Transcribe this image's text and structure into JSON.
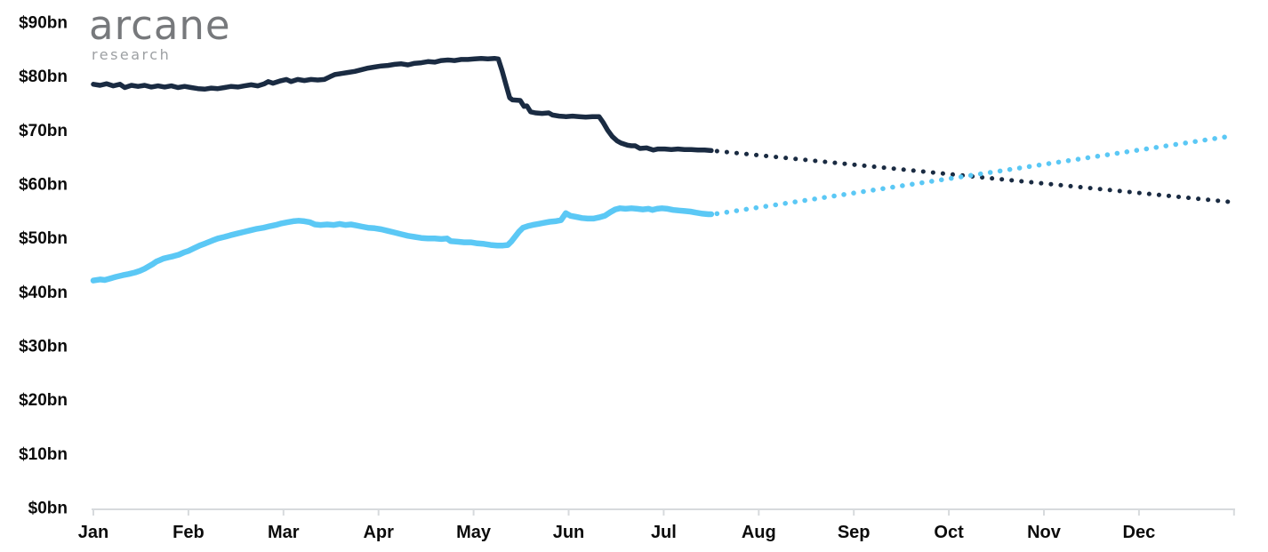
{
  "brand": {
    "wordmark": "arcane",
    "subtext": "research",
    "wordmark_color": "#77797c",
    "subtext_color": "#9da0a3"
  },
  "chart_data": {
    "type": "line",
    "title": "",
    "x_unit": "month",
    "y_unit": "$bn",
    "grid": false,
    "legend": "none",
    "axis_color": "#d7dadd",
    "xlim_months": [
      0,
      12
    ],
    "ylim": [
      0,
      90
    ],
    "x_tick_labels": [
      "Jan",
      "Feb",
      "Mar",
      "Apr",
      "May",
      "Jun",
      "Jul",
      "Aug",
      "Sep",
      "Oct",
      "Nov",
      "Dec"
    ],
    "y_ticks": [
      {
        "label": "$90bn",
        "value": 90
      },
      {
        "label": "$80bn",
        "value": 80
      },
      {
        "label": "$70bn",
        "value": 70
      },
      {
        "label": "$60bn",
        "value": 60
      },
      {
        "label": "$50bn",
        "value": 50
      },
      {
        "label": "$40bn",
        "value": 40
      },
      {
        "label": "$30bn",
        "value": 30
      },
      {
        "label": "$20bn",
        "value": 20
      },
      {
        "label": "$10bn",
        "value": 10
      },
      {
        "label": "$0bn",
        "value": 0
      }
    ],
    "series": [
      {
        "name": "dark-navy-actual",
        "style": "solid",
        "color": "#1a2b42",
        "points": [
          [
            0.0,
            78.5
          ],
          [
            0.07,
            78.3
          ],
          [
            0.14,
            78.6
          ],
          [
            0.21,
            78.2
          ],
          [
            0.28,
            78.5
          ],
          [
            0.33,
            77.9
          ],
          [
            0.4,
            78.3
          ],
          [
            0.47,
            78.1
          ],
          [
            0.54,
            78.3
          ],
          [
            0.61,
            78.0
          ],
          [
            0.68,
            78.2
          ],
          [
            0.75,
            78.0
          ],
          [
            0.82,
            78.2
          ],
          [
            0.89,
            77.9
          ],
          [
            0.96,
            78.1
          ],
          [
            1.03,
            77.9
          ],
          [
            1.1,
            77.7
          ],
          [
            1.17,
            77.6
          ],
          [
            1.24,
            77.8
          ],
          [
            1.31,
            77.7
          ],
          [
            1.38,
            77.9
          ],
          [
            1.45,
            78.1
          ],
          [
            1.52,
            78.0
          ],
          [
            1.59,
            78.2
          ],
          [
            1.66,
            78.4
          ],
          [
            1.73,
            78.2
          ],
          [
            1.8,
            78.6
          ],
          [
            1.84,
            79.0
          ],
          [
            1.89,
            78.7
          ],
          [
            1.96,
            79.1
          ],
          [
            2.03,
            79.4
          ],
          [
            2.08,
            79.0
          ],
          [
            2.15,
            79.4
          ],
          [
            2.22,
            79.2
          ],
          [
            2.29,
            79.4
          ],
          [
            2.36,
            79.3
          ],
          [
            2.43,
            79.4
          ],
          [
            2.49,
            79.9
          ],
          [
            2.54,
            80.3
          ],
          [
            2.61,
            80.5
          ],
          [
            2.68,
            80.7
          ],
          [
            2.75,
            80.9
          ],
          [
            2.82,
            81.2
          ],
          [
            2.89,
            81.5
          ],
          [
            2.96,
            81.7
          ],
          [
            3.03,
            81.9
          ],
          [
            3.1,
            82.0
          ],
          [
            3.17,
            82.2
          ],
          [
            3.24,
            82.3
          ],
          [
            3.31,
            82.1
          ],
          [
            3.38,
            82.4
          ],
          [
            3.45,
            82.5
          ],
          [
            3.52,
            82.7
          ],
          [
            3.59,
            82.6
          ],
          [
            3.66,
            82.9
          ],
          [
            3.73,
            83.0
          ],
          [
            3.8,
            82.9
          ],
          [
            3.87,
            83.1
          ],
          [
            3.94,
            83.1
          ],
          [
            4.01,
            83.2
          ],
          [
            4.08,
            83.3
          ],
          [
            4.15,
            83.2
          ],
          [
            4.22,
            83.3
          ],
          [
            4.26,
            83.2
          ],
          [
            4.3,
            81.0
          ],
          [
            4.34,
            78.5
          ],
          [
            4.38,
            76.0
          ],
          [
            4.41,
            75.6
          ],
          [
            4.49,
            75.5
          ],
          [
            4.53,
            74.4
          ],
          [
            4.56,
            74.5
          ],
          [
            4.6,
            73.4
          ],
          [
            4.65,
            73.2
          ],
          [
            4.72,
            73.1
          ],
          [
            4.79,
            73.2
          ],
          [
            4.83,
            72.8
          ],
          [
            4.9,
            72.6
          ],
          [
            4.97,
            72.5
          ],
          [
            5.04,
            72.6
          ],
          [
            5.11,
            72.5
          ],
          [
            5.18,
            72.4
          ],
          [
            5.25,
            72.5
          ],
          [
            5.32,
            72.5
          ],
          [
            5.36,
            71.5
          ],
          [
            5.41,
            70.0
          ],
          [
            5.46,
            68.8
          ],
          [
            5.51,
            68.0
          ],
          [
            5.55,
            67.6
          ],
          [
            5.62,
            67.2
          ],
          [
            5.66,
            67.1
          ],
          [
            5.7,
            67.1
          ],
          [
            5.75,
            66.6
          ],
          [
            5.82,
            66.7
          ],
          [
            5.89,
            66.3
          ],
          [
            5.94,
            66.5
          ],
          [
            6.01,
            66.5
          ],
          [
            6.08,
            66.4
          ],
          [
            6.15,
            66.5
          ],
          [
            6.22,
            66.4
          ],
          [
            6.29,
            66.4
          ],
          [
            6.36,
            66.3
          ],
          [
            6.43,
            66.3
          ],
          [
            6.5,
            66.2
          ]
        ]
      },
      {
        "name": "dark-navy-projected",
        "style": "dotted",
        "color": "#1a2b42",
        "points": [
          [
            6.56,
            66.1
          ],
          [
            11.95,
            56.7
          ]
        ]
      },
      {
        "name": "light-blue-actual",
        "style": "solid",
        "color": "#5bc8f5",
        "points": [
          [
            0.0,
            42.1
          ],
          [
            0.07,
            42.3
          ],
          [
            0.12,
            42.2
          ],
          [
            0.18,
            42.5
          ],
          [
            0.24,
            42.8
          ],
          [
            0.31,
            43.1
          ],
          [
            0.37,
            43.3
          ],
          [
            0.44,
            43.6
          ],
          [
            0.49,
            43.9
          ],
          [
            0.54,
            44.3
          ],
          [
            0.58,
            44.7
          ],
          [
            0.62,
            45.1
          ],
          [
            0.66,
            45.6
          ],
          [
            0.7,
            45.9
          ],
          [
            0.74,
            46.2
          ],
          [
            0.79,
            46.4
          ],
          [
            0.84,
            46.6
          ],
          [
            0.9,
            46.9
          ],
          [
            0.95,
            47.3
          ],
          [
            1.0,
            47.6
          ],
          [
            1.06,
            48.1
          ],
          [
            1.12,
            48.6
          ],
          [
            1.18,
            49.0
          ],
          [
            1.25,
            49.5
          ],
          [
            1.31,
            49.9
          ],
          [
            1.38,
            50.2
          ],
          [
            1.44,
            50.5
          ],
          [
            1.51,
            50.8
          ],
          [
            1.58,
            51.1
          ],
          [
            1.65,
            51.4
          ],
          [
            1.72,
            51.7
          ],
          [
            1.79,
            51.9
          ],
          [
            1.86,
            52.2
          ],
          [
            1.92,
            52.4
          ],
          [
            1.98,
            52.7
          ],
          [
            2.04,
            52.9
          ],
          [
            2.1,
            53.1
          ],
          [
            2.16,
            53.2
          ],
          [
            2.22,
            53.1
          ],
          [
            2.28,
            52.9
          ],
          [
            2.33,
            52.5
          ],
          [
            2.39,
            52.4
          ],
          [
            2.46,
            52.5
          ],
          [
            2.53,
            52.4
          ],
          [
            2.59,
            52.6
          ],
          [
            2.65,
            52.4
          ],
          [
            2.71,
            52.5
          ],
          [
            2.77,
            52.3
          ],
          [
            2.83,
            52.1
          ],
          [
            2.89,
            51.9
          ],
          [
            2.96,
            51.8
          ],
          [
            3.03,
            51.6
          ],
          [
            3.1,
            51.3
          ],
          [
            3.17,
            51.0
          ],
          [
            3.24,
            50.7
          ],
          [
            3.31,
            50.4
          ],
          [
            3.38,
            50.2
          ],
          [
            3.45,
            50.0
          ],
          [
            3.52,
            49.9
          ],
          [
            3.59,
            49.9
          ],
          [
            3.66,
            49.8
          ],
          [
            3.72,
            49.9
          ],
          [
            3.76,
            49.4
          ],
          [
            3.83,
            49.3
          ],
          [
            3.9,
            49.2
          ],
          [
            3.97,
            49.2
          ],
          [
            4.04,
            49.0
          ],
          [
            4.11,
            48.9
          ],
          [
            4.18,
            48.7
          ],
          [
            4.25,
            48.6
          ],
          [
            4.31,
            48.6
          ],
          [
            4.36,
            48.7
          ],
          [
            4.4,
            49.4
          ],
          [
            4.44,
            50.3
          ],
          [
            4.48,
            51.2
          ],
          [
            4.52,
            51.9
          ],
          [
            4.57,
            52.2
          ],
          [
            4.62,
            52.4
          ],
          [
            4.68,
            52.6
          ],
          [
            4.74,
            52.8
          ],
          [
            4.8,
            53.0
          ],
          [
            4.86,
            53.1
          ],
          [
            4.92,
            53.3
          ],
          [
            4.97,
            54.6
          ],
          [
            5.02,
            54.1
          ],
          [
            5.08,
            53.9
          ],
          [
            5.14,
            53.7
          ],
          [
            5.2,
            53.6
          ],
          [
            5.26,
            53.6
          ],
          [
            5.32,
            53.8
          ],
          [
            5.38,
            54.1
          ],
          [
            5.44,
            54.8
          ],
          [
            5.49,
            55.3
          ],
          [
            5.54,
            55.5
          ],
          [
            5.6,
            55.4
          ],
          [
            5.66,
            55.5
          ],
          [
            5.72,
            55.4
          ],
          [
            5.78,
            55.3
          ],
          [
            5.84,
            55.4
          ],
          [
            5.88,
            55.2
          ],
          [
            5.93,
            55.4
          ],
          [
            5.98,
            55.5
          ],
          [
            6.04,
            55.4
          ],
          [
            6.1,
            55.2
          ],
          [
            6.16,
            55.1
          ],
          [
            6.22,
            55.0
          ],
          [
            6.28,
            54.9
          ],
          [
            6.34,
            54.7
          ],
          [
            6.41,
            54.5
          ],
          [
            6.47,
            54.4
          ],
          [
            6.5,
            54.4
          ]
        ]
      },
      {
        "name": "light-blue-projected",
        "style": "dotted",
        "color": "#5bc8f5",
        "points": [
          [
            6.56,
            54.5
          ],
          [
            11.97,
            68.9
          ]
        ]
      }
    ]
  }
}
